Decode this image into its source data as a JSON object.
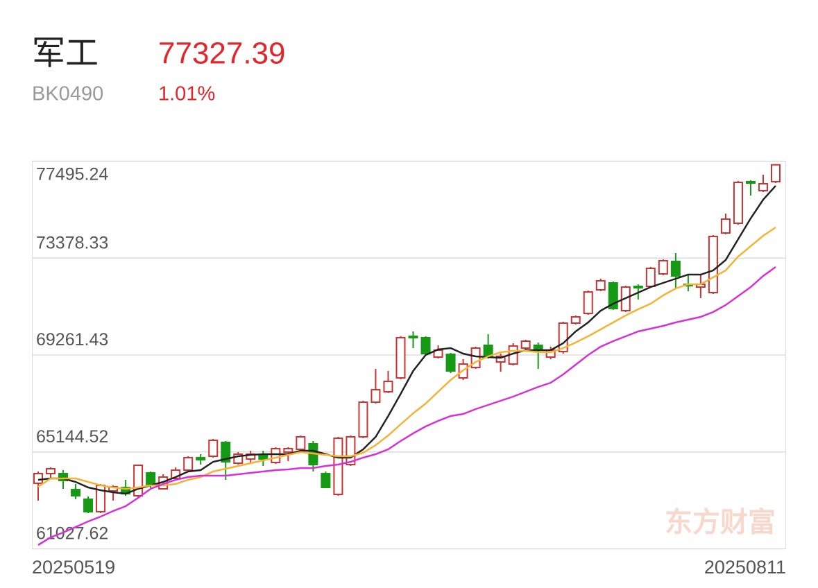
{
  "header": {
    "name": "军工",
    "price": "77327.39",
    "code": "BK0490",
    "change": "1.01%"
  },
  "chart_data": {
    "type": "candlestick",
    "watermark": "东方财富",
    "categories": [
      "20250519",
      null,
      null,
      null,
      null,
      null,
      null,
      null,
      null,
      null,
      null,
      null,
      null,
      null,
      null,
      null,
      null,
      null,
      null,
      null,
      null,
      null,
      null,
      null,
      null,
      null,
      null,
      null,
      null,
      null,
      null,
      null,
      null,
      null,
      null,
      null,
      null,
      null,
      null,
      null,
      null,
      null,
      null,
      null,
      null,
      null,
      null,
      null,
      null,
      null,
      null,
      null,
      null,
      null,
      null,
      null,
      null,
      null,
      null,
      "20250811"
    ],
    "open": [
      63797,
      64209,
      64209,
      63532,
      63120,
      62590,
      63473,
      63620,
      63267,
      64239,
      63561,
      64003,
      64356,
      64886,
      64945,
      65535,
      64651,
      64827,
      64975,
      64680,
      65122,
      65240,
      65476,
      64209,
      63326,
      64592,
      65770,
      67243,
      67685,
      68274,
      70042,
      69983,
      69158,
      69276,
      68274,
      68716,
      69659,
      68952,
      68864,
      69541,
      69659,
      69158,
      69394,
      70602,
      71014,
      72016,
      72310,
      71132,
      72163,
      72163,
      72694,
      73224,
      72251,
      72133,
      71898,
      74431,
      74844,
      76612,
      76229,
      76612
    ],
    "high": [
      64297,
      64474,
      64356,
      63767,
      63237,
      63767,
      63708,
      63944,
      64592,
      64297,
      64180,
      64474,
      64945,
      65034,
      65682,
      65594,
      65122,
      65181,
      65181,
      65329,
      65329,
      65829,
      65594,
      64297,
      65770,
      65829,
      67302,
      68657,
      68569,
      70042,
      70248,
      70042,
      69659,
      69335,
      69070,
      69600,
      70130,
      69305,
      69747,
      69895,
      69777,
      69600,
      70661,
      70926,
      71986,
      72487,
      72369,
      72192,
      72251,
      72988,
      73312,
      73577,
      72694,
      72664,
      74343,
      75257,
      76641,
      76670,
      76906,
      77360
    ],
    "low": [
      63062,
      64003,
      63561,
      63120,
      62531,
      62531,
      63062,
      63267,
      63208,
      63561,
      63532,
      63944,
      64297,
      64592,
      64886,
      63944,
      64592,
      64651,
      64533,
      64621,
      64739,
      65181,
      64297,
      63591,
      63267,
      64533,
      65711,
      67184,
      67626,
      68215,
      69541,
      69247,
      69099,
      68480,
      68186,
      68657,
      69099,
      68539,
      68805,
      69482,
      68657,
      69070,
      69305,
      70543,
      70955,
      71957,
      71161,
      71073,
      71603,
      72104,
      72635,
      72104,
      71957,
      71662,
      71839,
      74373,
      74785,
      76023,
      76170,
      76553
    ],
    "close": [
      64209,
      64415,
      63915,
      63267,
      62590,
      63708,
      63649,
      63355,
      64563,
      63708,
      64062,
      64356,
      64886,
      64798,
      65623,
      64709,
      65034,
      65034,
      64827,
      65269,
      65269,
      65770,
      64592,
      63620,
      65711,
      65770,
      67243,
      67773,
      68127,
      69983,
      69983,
      69305,
      69453,
      68569,
      68864,
      69541,
      69158,
      69188,
      69630,
      69836,
      69453,
      69453,
      70602,
      70867,
      71927,
      72399,
      71220,
      72133,
      72104,
      72929,
      73253,
      72605,
      72192,
      72251,
      74284,
      75021,
      76582,
      76553,
      76523,
      77327
    ],
    "up_color": "#cc3333",
    "down_color": "#169a16",
    "series": [
      {
        "color": "#222222",
        "values": [
          63944,
          64003,
          64003,
          63856,
          63620,
          63502,
          63413,
          63355,
          63561,
          63708,
          63856,
          64062,
          64297,
          64356,
          64709,
          64827,
          64945,
          65004,
          65034,
          65034,
          65034,
          65181,
          65181,
          65034,
          64886,
          64886,
          65240,
          65770,
          66654,
          67597,
          68569,
          69247,
          69482,
          69541,
          69305,
          69188,
          69158,
          69129,
          69305,
          69453,
          69453,
          69453,
          69747,
          70248,
          70631,
          71132,
          71427,
          71662,
          71898,
          72133,
          72310,
          72487,
          72664,
          72664,
          72841,
          73283,
          74167,
          75053,
          75848,
          76437
        ]
      },
      {
        "color": "#f5b335",
        "values": [
          63649,
          64003,
          64003,
          64003,
          63856,
          63708,
          63620,
          63561,
          63620,
          63708,
          63708,
          63767,
          63944,
          64062,
          64297,
          64415,
          64533,
          64651,
          64769,
          64886,
          65004,
          65122,
          65063,
          65004,
          64945,
          64945,
          65092,
          65416,
          65829,
          66301,
          66769,
          67184,
          67685,
          68186,
          68598,
          68952,
          69188,
          69365,
          69424,
          69424,
          69365,
          69365,
          69541,
          69777,
          70042,
          70337,
          70631,
          70926,
          71191,
          71427,
          71780,
          72075,
          72251,
          72251,
          72546,
          72841,
          73430,
          73872,
          74314,
          74667
        ]
      },
      {
        "color": "#d830d8",
        "values": [
          61175,
          61499,
          61704,
          61940,
          62176,
          62382,
          62618,
          62824,
          63177,
          63561,
          63767,
          63944,
          64062,
          64121,
          64121,
          64121,
          64180,
          64239,
          64297,
          64356,
          64386,
          64445,
          64445,
          64533,
          64592,
          64709,
          64886,
          65034,
          65240,
          65594,
          65918,
          66212,
          66448,
          66654,
          66742,
          66948,
          67125,
          67302,
          67479,
          67685,
          67891,
          68068,
          68421,
          68834,
          69247,
          69600,
          69836,
          70042,
          70248,
          70366,
          70484,
          70631,
          70749,
          70867,
          71073,
          71368,
          71750,
          72133,
          72605,
          72988
        ]
      }
    ],
    "ylim": [
      61027.62,
      77495.24
    ],
    "yticks": [
      61027.62,
      65144.52,
      69261.43,
      73378.33,
      77495.24
    ],
    "grid": true
  }
}
